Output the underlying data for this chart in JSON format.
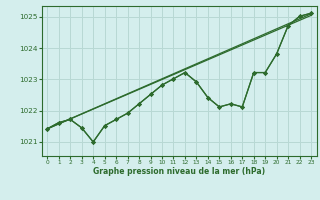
{
  "title": "Graphe pression niveau de la mer (hPa)",
  "background_color": "#d4eeed",
  "grid_color": "#b8d8d4",
  "line_color": "#2d6b2d",
  "xlim": [
    -0.5,
    23.5
  ],
  "ylim": [
    1020.55,
    1025.35
  ],
  "yticks": [
    1021,
    1022,
    1023,
    1024,
    1025
  ],
  "xticks": [
    0,
    1,
    2,
    3,
    4,
    5,
    6,
    7,
    8,
    9,
    10,
    11,
    12,
    13,
    14,
    15,
    16,
    17,
    18,
    19,
    20,
    21,
    22,
    23
  ],
  "line1_x": [
    0,
    23
  ],
  "line1_y": [
    1021.4,
    1025.05
  ],
  "line2_x": [
    0,
    23
  ],
  "line2_y": [
    1021.42,
    1025.1
  ],
  "zigzag1_x": [
    0,
    1,
    2,
    3,
    4,
    5,
    6,
    7,
    8,
    9,
    10,
    11,
    12,
    13,
    14,
    15,
    16,
    17,
    18,
    19,
    20,
    21,
    22,
    23
  ],
  "zigzag1_y": [
    1021.4,
    1021.6,
    1021.72,
    1021.45,
    1021.0,
    1021.5,
    1021.72,
    1021.92,
    1022.2,
    1022.5,
    1022.82,
    1023.02,
    1023.22,
    1022.92,
    1022.45,
    1022.15,
    1022.25,
    1022.15,
    1023.22,
    1023.22,
    1023.82,
    1024.72,
    1025.02,
    1025.1
  ],
  "zigzag2_x": [
    0,
    1,
    2,
    3,
    4,
    5,
    6,
    7,
    8,
    9,
    10,
    11,
    12,
    13,
    14,
    15,
    16,
    17,
    18,
    19,
    20,
    21,
    22,
    23
  ],
  "zigzag2_y": [
    1021.4,
    1021.6,
    1021.72,
    1021.45,
    1021.0,
    1021.5,
    1021.72,
    1021.92,
    1022.2,
    1022.5,
    1022.82,
    1023.02,
    1023.22,
    1022.92,
    1022.45,
    1022.15,
    1022.25,
    1022.15,
    1023.22,
    1023.22,
    1023.82,
    1024.72,
    1025.02,
    1025.1
  ]
}
